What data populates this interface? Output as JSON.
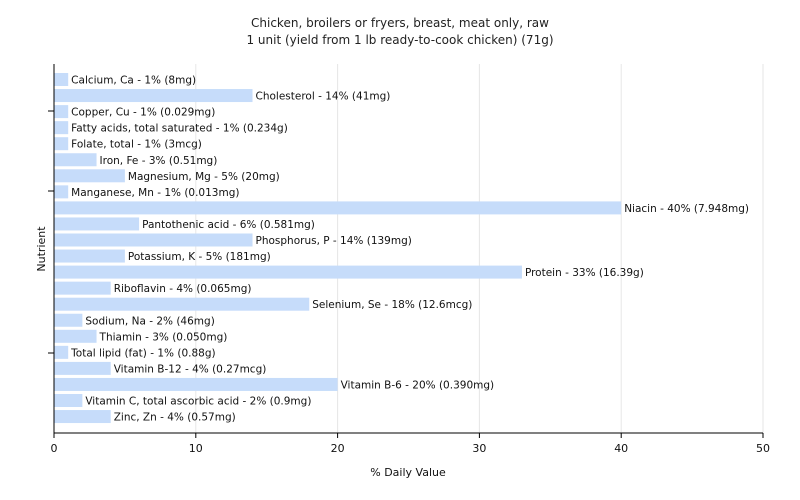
{
  "chart_data": {
    "type": "bar",
    "orientation": "horizontal",
    "title": "Chicken, broilers or fryers, breast, meat only, raw",
    "subtitle": "1 unit (yield from 1 lb ready-to-cook chicken) (71g)",
    "xlabel": "% Daily Value",
    "ylabel": "Nutrient",
    "xlim": [
      0,
      50
    ],
    "xticks": [
      0,
      10,
      20,
      30,
      40,
      50
    ],
    "grid": true,
    "bar_color": "#c6dcfa",
    "categories": [
      "Calcium, Ca",
      "Cholesterol",
      "Copper, Cu",
      "Fatty acids, total saturated",
      "Folate, total",
      "Iron, Fe",
      "Magnesium, Mg",
      "Manganese, Mn",
      "Niacin",
      "Pantothenic acid",
      "Phosphorus, P",
      "Potassium, K",
      "Protein",
      "Riboflavin",
      "Selenium, Se",
      "Sodium, Na",
      "Thiamin",
      "Total lipid (fat)",
      "Vitamin B-12",
      "Vitamin B-6",
      "Vitamin C, total ascorbic acid",
      "Zinc, Zn"
    ],
    "values": [
      1,
      14,
      1,
      1,
      1,
      3,
      5,
      1,
      40,
      6,
      14,
      5,
      33,
      4,
      18,
      2,
      3,
      1,
      4,
      20,
      2,
      4
    ],
    "labels": [
      "Calcium, Ca - 1% (8mg)",
      "Cholesterol - 14% (41mg)",
      "Copper, Cu - 1% (0.029mg)",
      "Fatty acids, total saturated - 1% (0.234g)",
      "Folate, total - 1% (3mcg)",
      "Iron, Fe - 3% (0.51mg)",
      "Magnesium, Mg - 5% (20mg)",
      "Manganese, Mn - 1% (0.013mg)",
      "Niacin - 40% (7.948mg)",
      "Pantothenic acid - 6% (0.581mg)",
      "Phosphorus, P - 14% (139mg)",
      "Potassium, K - 5% (181mg)",
      "Protein - 33% (16.39g)",
      "Riboflavin - 4% (0.065mg)",
      "Selenium, Se - 18% (12.6mcg)",
      "Sodium, Na - 2% (46mg)",
      "Thiamin - 3% (0.050mg)",
      "Total lipid (fat) - 1% (0.88g)",
      "Vitamin B-12 - 4% (0.27mcg)",
      "Vitamin B-6 - 20% (0.390mg)",
      "Vitamin C, total ascorbic acid - 2% (0.9mg)",
      "Zinc, Zn - 4% (0.57mg)"
    ]
  }
}
